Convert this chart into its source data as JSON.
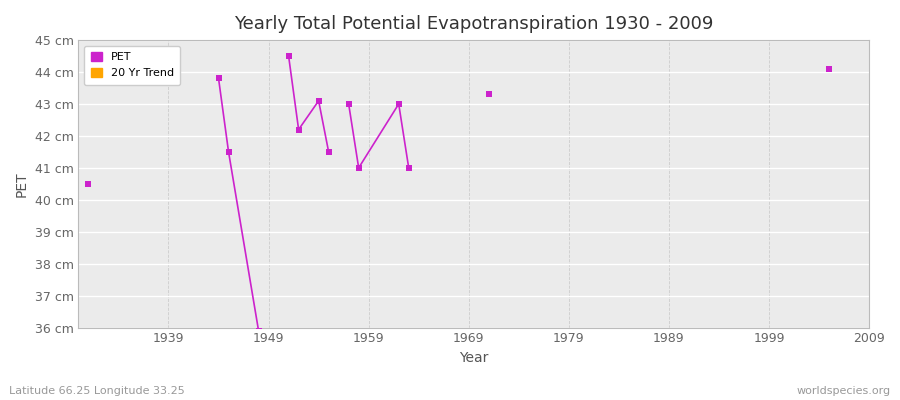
{
  "title": "Yearly Total Potential Evapotranspiration 1930 - 2009",
  "xlabel": "Year",
  "ylabel": "PET",
  "subtitle": "Latitude 66.25 Longitude 33.25",
  "watermark": "worldspecies.org",
  "xlim": [
    1930,
    2009
  ],
  "ylim": [
    36,
    45
  ],
  "yticks": [
    36,
    37,
    38,
    39,
    40,
    41,
    42,
    43,
    44,
    45
  ],
  "ytick_labels": [
    "36 cm",
    "37 cm",
    "38 cm",
    "39 cm",
    "40 cm",
    "41 cm",
    "42 cm",
    "43 cm",
    "44 cm",
    "45 cm"
  ],
  "xticks": [
    1939,
    1949,
    1959,
    1969,
    1979,
    1989,
    1999,
    2009
  ],
  "segments": [
    {
      "x": [
        1931
      ],
      "y": [
        40.5
      ]
    },
    {
      "x": [
        1944,
        1945,
        1948
      ],
      "y": [
        43.8,
        41.5,
        35.9
      ]
    },
    {
      "x": [
        1951,
        1952,
        1954,
        1955
      ],
      "y": [
        44.5,
        42.2,
        43.1,
        41.5
      ]
    },
    {
      "x": [
        1957,
        1958,
        1962,
        1963
      ],
      "y": [
        43.0,
        41.0,
        43.0,
        41.0
      ]
    },
    {
      "x": [
        1971
      ],
      "y": [
        43.3
      ]
    },
    {
      "x": [
        2005
      ],
      "y": [
        44.1
      ]
    }
  ],
  "pet_color": "#cc22cc",
  "trend_color": "#ffa500",
  "bg_color": "#ffffff",
  "plot_bg_color": "#ebebeb",
  "grid_h_color": "#ffffff",
  "grid_v_color": "#cccccc",
  "spine_color": "#bbbbbb",
  "tick_color": "#666666",
  "title_color": "#333333",
  "label_color": "#555555",
  "sub_color": "#999999",
  "legend_items": [
    "PET",
    "20 Yr Trend"
  ],
  "legend_colors": [
    "#cc22cc",
    "#ffa500"
  ],
  "marker_size": 4,
  "line_width": 1.2
}
